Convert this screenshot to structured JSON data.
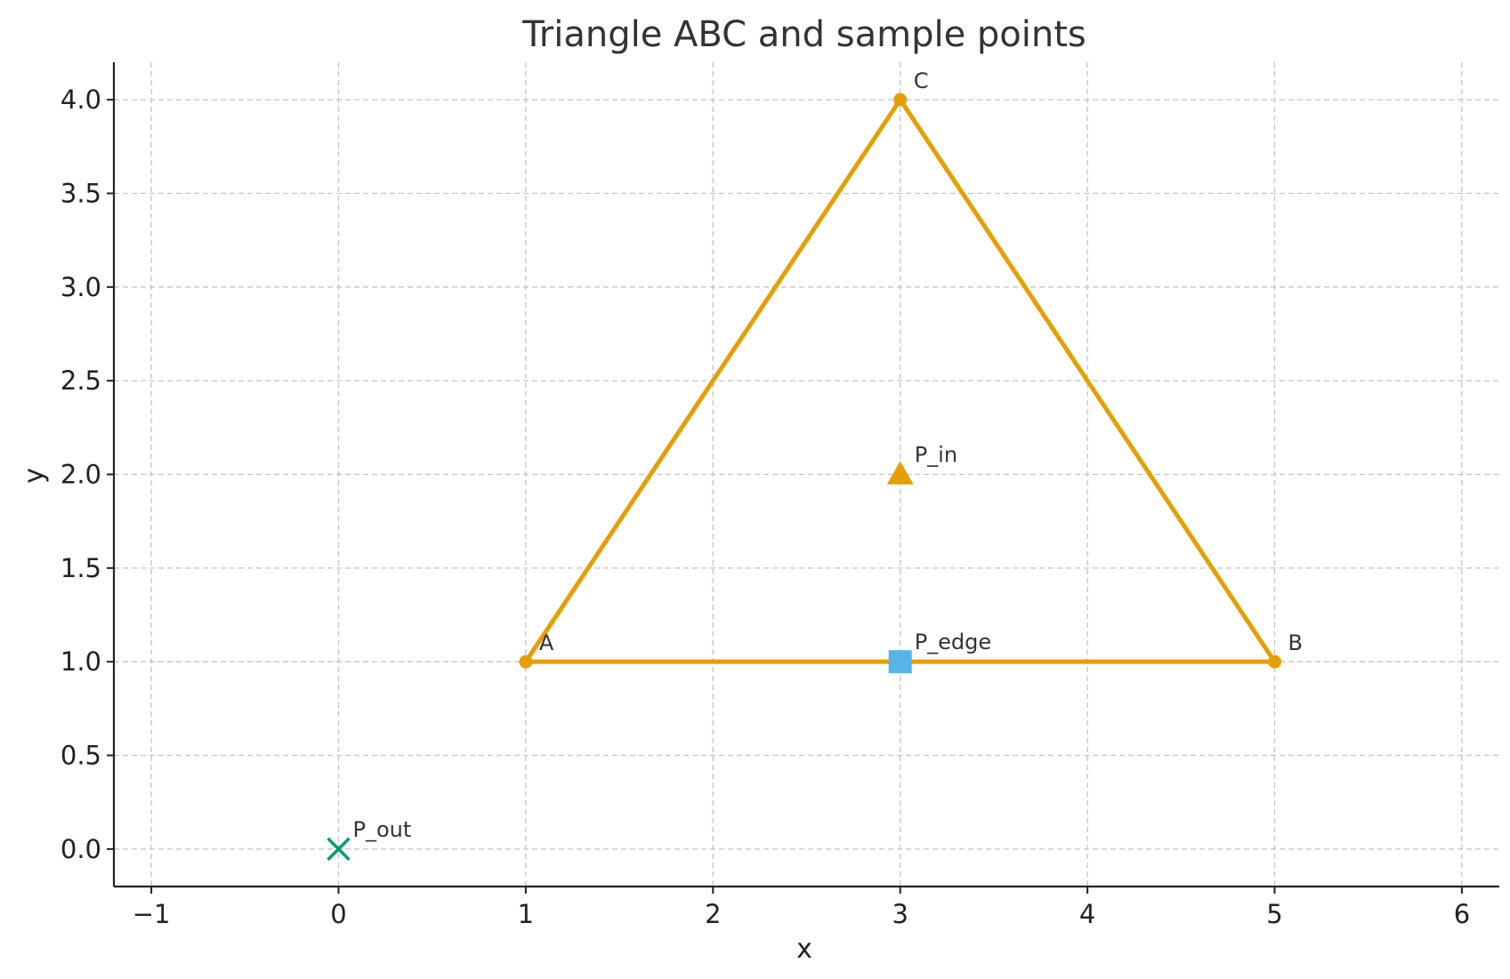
{
  "chart_data": {
    "type": "scatter",
    "title": "Triangle ABC and sample points",
    "xlabel": "x",
    "ylabel": "y",
    "xlim": [
      -1.2,
      6.2
    ],
    "ylim": [
      -0.2,
      4.2
    ],
    "xticks": [
      -1,
      0,
      1,
      2,
      3,
      4,
      5,
      6
    ],
    "xtick_labels": [
      "−1",
      "0",
      "1",
      "2",
      "3",
      "4",
      "5",
      "6"
    ],
    "yticks": [
      0.0,
      0.5,
      1.0,
      1.5,
      2.0,
      2.5,
      3.0,
      3.5,
      4.0
    ],
    "ytick_labels": [
      "0.0",
      "0.5",
      "1.0",
      "1.5",
      "2.0",
      "2.5",
      "3.0",
      "3.5",
      "4.0"
    ],
    "grid": true,
    "triangle": {
      "color": "#E69F00",
      "vertices": [
        {
          "label": "A",
          "x": 1,
          "y": 1
        },
        {
          "label": "B",
          "x": 5,
          "y": 1
        },
        {
          "label": "C",
          "x": 3,
          "y": 4
        }
      ]
    },
    "points": [
      {
        "label": "P_in",
        "x": 3,
        "y": 2,
        "marker": "triangle",
        "color": "#E69F00"
      },
      {
        "label": "P_edge",
        "x": 3,
        "y": 1,
        "marker": "square",
        "color": "#56B4E9"
      },
      {
        "label": "P_out",
        "x": 0,
        "y": 0,
        "marker": "x",
        "color": "#009E73"
      }
    ]
  }
}
